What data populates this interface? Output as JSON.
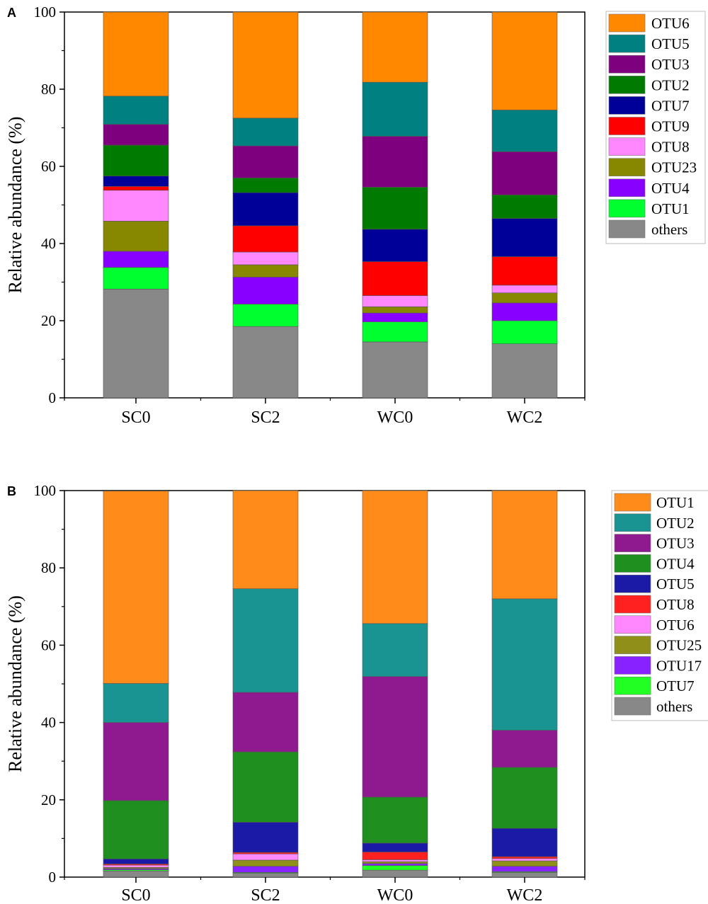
{
  "chart_data": [
    {
      "type": "bar",
      "stacked": true,
      "panel_label": "A",
      "categories": [
        "SC0",
        "SC2",
        "WC0",
        "WC2"
      ],
      "ylabel": "Relative abundance (%)",
      "xlabel": "",
      "ylim": [
        0,
        100
      ],
      "yticks": [
        0,
        20,
        40,
        60,
        80,
        100
      ],
      "legend_position": "right",
      "series": [
        {
          "name": "others",
          "color": "#888888",
          "values": [
            28.2,
            18.5,
            14.5,
            14.0
          ]
        },
        {
          "name": "OTU1",
          "color": "#00ff2e",
          "values": [
            5.6,
            5.8,
            5.2,
            6.0
          ]
        },
        {
          "name": "OTU4",
          "color": "#8800ff",
          "values": [
            4.2,
            7.0,
            2.3,
            4.6
          ]
        },
        {
          "name": "OTU23",
          "color": "#888800",
          "values": [
            7.8,
            3.2,
            1.6,
            2.6
          ]
        },
        {
          "name": "OTU8",
          "color": "#ff88ff",
          "values": [
            8.0,
            3.3,
            2.9,
            2.0
          ]
        },
        {
          "name": "OTU9",
          "color": "#ff0000",
          "values": [
            1.0,
            6.8,
            8.8,
            7.4
          ]
        },
        {
          "name": "OTU7",
          "color": "#000099",
          "values": [
            2.7,
            8.6,
            8.4,
            9.9
          ]
        },
        {
          "name": "OTU2",
          "color": "#007a00",
          "values": [
            8.0,
            3.8,
            10.9,
            6.1
          ]
        },
        {
          "name": "OTU3",
          "color": "#7f007f",
          "values": [
            5.4,
            8.3,
            13.2,
            11.2
          ]
        },
        {
          "name": "OTU5",
          "color": "#008080",
          "values": [
            7.3,
            7.2,
            14.0,
            10.8
          ]
        },
        {
          "name": "OTU6",
          "color": "#ff8800",
          "values": [
            21.8,
            27.5,
            18.2,
            25.4
          ]
        }
      ],
      "legend_order": [
        "OTU6",
        "OTU5",
        "OTU3",
        "OTU2",
        "OTU7",
        "OTU9",
        "OTU8",
        "OTU23",
        "OTU4",
        "OTU1",
        "others"
      ]
    },
    {
      "type": "bar",
      "stacked": true,
      "panel_label": "B",
      "categories": [
        "SC0",
        "SC2",
        "WC0",
        "WC2"
      ],
      "ylabel": "Relative abundance (%)",
      "xlabel": "",
      "ylim": [
        0,
        100
      ],
      "yticks": [
        0,
        20,
        40,
        60,
        80,
        100
      ],
      "legend_position": "right",
      "series": [
        {
          "name": "others",
          "color": "#888888",
          "values": [
            1.6,
            1.0,
            1.8,
            1.2
          ]
        },
        {
          "name": "OTU7",
          "color": "#22ff22",
          "values": [
            0.3,
            0.2,
            1.2,
            0.2
          ]
        },
        {
          "name": "OTU17",
          "color": "#8822ff",
          "values": [
            0.3,
            1.6,
            0.5,
            1.4
          ]
        },
        {
          "name": "OTU25",
          "color": "#8f8f1a",
          "values": [
            0.3,
            1.6,
            0.5,
            1.4
          ]
        },
        {
          "name": "OTU6",
          "color": "#ff88ff",
          "values": [
            0.6,
            1.6,
            0.5,
            0.6
          ]
        },
        {
          "name": "OTU8",
          "color": "#ff2020",
          "values": [
            0.3,
            0.4,
            2.0,
            0.5
          ]
        },
        {
          "name": "OTU5",
          "color": "#1a1aa6",
          "values": [
            1.3,
            7.8,
            2.3,
            7.3
          ]
        },
        {
          "name": "OTU4",
          "color": "#1f8f1f",
          "values": [
            15.1,
            18.2,
            11.9,
            15.8
          ]
        },
        {
          "name": "OTU3",
          "color": "#8f1a8f",
          "values": [
            20.2,
            15.4,
            31.2,
            9.6
          ]
        },
        {
          "name": "OTU2",
          "color": "#1a9393",
          "values": [
            10.1,
            26.8,
            13.7,
            34.0
          ]
        },
        {
          "name": "OTU1",
          "color": "#ff8c1a",
          "values": [
            49.8,
            25.4,
            34.4,
            28.0
          ]
        }
      ],
      "legend_order": [
        "OTU1",
        "OTU2",
        "OTU3",
        "OTU4",
        "OTU5",
        "OTU8",
        "OTU6",
        "OTU25",
        "OTU17",
        "OTU7",
        "others"
      ]
    }
  ]
}
